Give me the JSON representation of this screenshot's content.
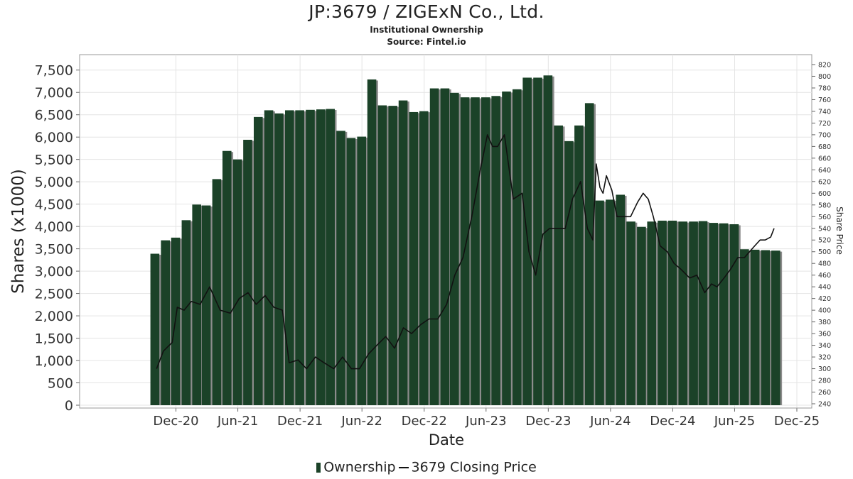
{
  "title": "JP:3679 / ZIGExN Co., Ltd.",
  "subtitle": "Institutional Ownership",
  "source": "Source: Fintel.io",
  "chart_data": {
    "type": "bar",
    "xlabel": "Date",
    "ylabel": "Shares (x1000)",
    "y2label": "Share Price",
    "ylim": [
      0,
      7750
    ],
    "y2lim": [
      235,
      825
    ],
    "yticks": [
      "0",
      "500",
      "1,000",
      "1,500",
      "2,000",
      "2,500",
      "3,000",
      "3,500",
      "4,000",
      "4,500",
      "5,000",
      "5,500",
      "6,000",
      "6,500",
      "7,000",
      "7,500"
    ],
    "y2ticks": [
      "240",
      "260",
      "280",
      "300",
      "320",
      "340",
      "360",
      "380",
      "400",
      "420",
      "440",
      "460",
      "480",
      "500",
      "520",
      "540",
      "560",
      "580",
      "600",
      "620",
      "640",
      "660",
      "680",
      "700",
      "720",
      "740",
      "760",
      "780",
      "800",
      "820"
    ],
    "xticks": [
      "Dec-20",
      "Jun-21",
      "Dec-21",
      "Jun-22",
      "Dec-22",
      "Jun-23",
      "Dec-23",
      "Jun-24",
      "Dec-24",
      "Jun-25",
      "Dec-25"
    ],
    "grid": true,
    "legend_position": "bottom",
    "series": [
      {
        "name": "Ownership",
        "color": "#1b4228",
        "x": [
          "2020-09-30",
          "2020-10-31",
          "2020-11-30",
          "2020-12-31",
          "2021-01-31",
          "2021-02-28",
          "2021-03-31",
          "2021-04-30",
          "2021-05-31",
          "2021-06-30",
          "2021-07-31",
          "2021-08-31",
          "2021-09-30",
          "2021-10-31",
          "2021-11-30",
          "2021-12-31",
          "2022-01-31",
          "2022-02-28",
          "2022-03-31",
          "2022-04-30",
          "2022-05-31",
          "2022-06-30",
          "2022-07-31",
          "2022-08-31",
          "2022-09-30",
          "2022-10-31",
          "2022-11-30",
          "2022-12-31",
          "2023-01-31",
          "2023-02-28",
          "2023-03-31",
          "2023-04-30",
          "2023-05-31",
          "2023-06-30",
          "2023-07-31",
          "2023-08-31",
          "2023-09-30",
          "2023-10-31",
          "2023-11-30",
          "2023-12-31",
          "2024-01-31",
          "2024-02-29",
          "2024-03-31",
          "2024-04-30",
          "2024-05-31",
          "2024-06-30",
          "2024-07-31",
          "2024-08-31",
          "2024-09-30",
          "2024-10-31",
          "2024-11-30",
          "2024-12-31",
          "2025-01-31",
          "2025-02-28",
          "2025-03-31",
          "2025-04-30",
          "2025-05-31",
          "2025-06-30",
          "2025-07-31",
          "2025-08-31",
          "2025-09-30"
        ],
        "values": [
          3390,
          3690,
          3750,
          4140,
          4490,
          4470,
          5060,
          5690,
          5500,
          5940,
          6450,
          6600,
          6530,
          6600,
          6600,
          6610,
          6620,
          6630,
          6140,
          5980,
          6010,
          7290,
          6710,
          6700,
          6820,
          6560,
          6580,
          7090,
          7090,
          6990,
          6890,
          6890,
          6890,
          6920,
          7020,
          7070,
          7330,
          7330,
          7380,
          6260,
          5910,
          6260,
          6760,
          4580,
          4600,
          4710,
          4110,
          3990,
          4110,
          4130,
          4130,
          4110,
          4110,
          4120,
          4080,
          4070,
          4050,
          3490,
          3480,
          3470,
          3460
        ]
      },
      {
        "name": "3679 Closing Price",
        "color": "#111111",
        "x": [
          "2020-10-05",
          "2020-10-25",
          "2020-11-20",
          "2020-12-05",
          "2020-12-25",
          "2021-01-15",
          "2021-02-10",
          "2021-03-10",
          "2021-04-10",
          "2021-05-10",
          "2021-06-05",
          "2021-07-01",
          "2021-07-25",
          "2021-08-20",
          "2021-09-15",
          "2021-10-10",
          "2021-10-30",
          "2021-11-25",
          "2021-12-20",
          "2022-01-15",
          "2022-02-10",
          "2022-03-10",
          "2022-04-05",
          "2022-05-01",
          "2022-05-25",
          "2022-06-20",
          "2022-07-15",
          "2022-08-10",
          "2022-09-05",
          "2022-10-01",
          "2022-10-25",
          "2022-11-20",
          "2022-12-15",
          "2023-01-10",
          "2023-02-05",
          "2023-03-01",
          "2023-03-25",
          "2023-04-20",
          "2023-05-15",
          "2023-06-05",
          "2023-06-20",
          "2023-07-05",
          "2023-07-25",
          "2023-08-20",
          "2023-09-15",
          "2023-10-05",
          "2023-10-25",
          "2023-11-15",
          "2023-12-05",
          "2023-12-25",
          "2024-01-20",
          "2024-02-10",
          "2024-03-05",
          "2024-03-25",
          "2024-04-10",
          "2024-04-20",
          "2024-05-01",
          "2024-05-10",
          "2024-05-20",
          "2024-06-05",
          "2024-06-20",
          "2024-07-10",
          "2024-07-30",
          "2024-08-20",
          "2024-09-05",
          "2024-09-20",
          "2024-10-05",
          "2024-10-25",
          "2024-11-15",
          "2024-12-05",
          "2024-12-25",
          "2025-01-20",
          "2025-02-10",
          "2025-03-05",
          "2025-03-25",
          "2025-04-10",
          "2025-05-01",
          "2025-05-20",
          "2025-06-10",
          "2025-06-30",
          "2025-07-15",
          "2025-07-30",
          "2025-08-15",
          "2025-08-30",
          "2025-09-15",
          "2025-09-25"
        ],
        "values": [
          300,
          330,
          345,
          405,
          400,
          415,
          410,
          440,
          400,
          395,
          420,
          430,
          410,
          425,
          405,
          400,
          310,
          315,
          300,
          320,
          310,
          300,
          320,
          300,
          300,
          325,
          340,
          355,
          335,
          370,
          360,
          375,
          385,
          385,
          410,
          460,
          490,
          560,
          640,
          700,
          680,
          680,
          700,
          590,
          600,
          500,
          460,
          530,
          540,
          540,
          540,
          590,
          620,
          540,
          520,
          650,
          610,
          600,
          630,
          605,
          560,
          560,
          560,
          585,
          600,
          590,
          560,
          510,
          500,
          480,
          470,
          455,
          460,
          430,
          445,
          440,
          455,
          470,
          490,
          490,
          500,
          510,
          520,
          520,
          525,
          540
        ]
      }
    ]
  }
}
